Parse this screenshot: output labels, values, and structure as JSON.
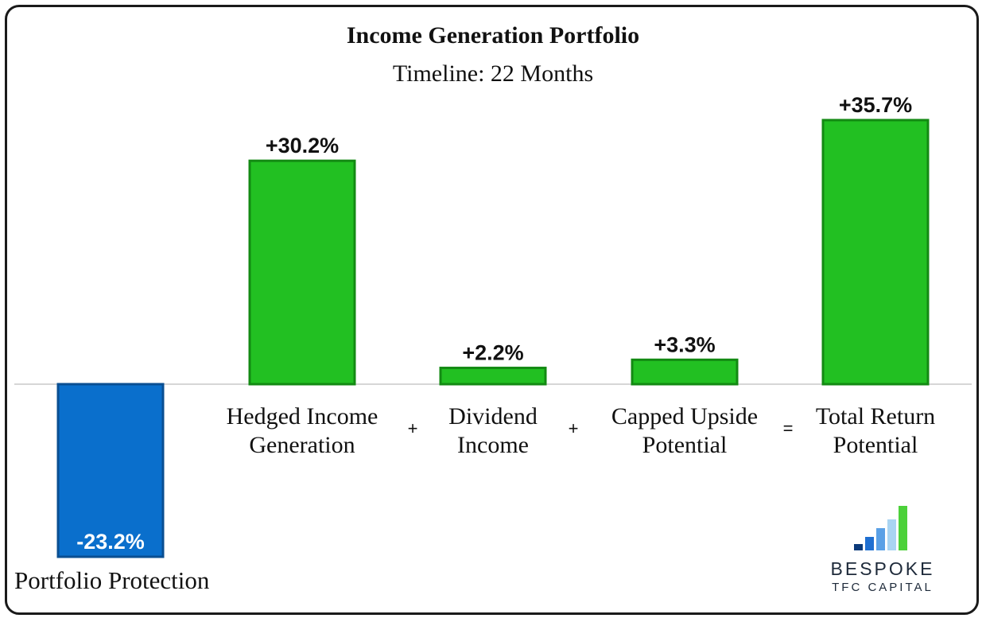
{
  "chart_data": {
    "type": "bar",
    "title": "Income Generation Portfolio",
    "subtitle": "Timeline: 22 Months",
    "categories": [
      "Portfolio Protection",
      "Hedged Income Generation",
      "Dividend Income",
      "Capped Upside Potential",
      "Total Return Potential"
    ],
    "category_lines": [
      [
        "Portfolio Protection"
      ],
      [
        "Hedged Income",
        "Generation"
      ],
      [
        "Dividend",
        "Income"
      ],
      [
        "Capped Upside",
        "Potential"
      ],
      [
        "Total Return",
        "Potential"
      ]
    ],
    "values": [
      -23.2,
      30.2,
      2.2,
      3.3,
      35.7
    ],
    "data_labels": [
      "-23.2%",
      "+30.2%",
      "+2.2%",
      "+3.3%",
      "+35.7%"
    ],
    "operators": [
      "+",
      "+",
      "="
    ],
    "colors": {
      "negative": "#0a6fcc",
      "positive": "#22c022",
      "negative_border": "#0a4f92",
      "positive_border": "#138a13"
    },
    "ylim": [
      -23.2,
      35.7
    ],
    "grid": false,
    "legend": "none"
  },
  "logo": {
    "name": "BESPOKE",
    "sub": "TFC CAPITAL",
    "bar_colors": [
      "#0b3a7a",
      "#1f6fd1",
      "#5aa0e6",
      "#a9d4f2",
      "#4cd13a"
    ],
    "bar_levels": [
      0.15,
      0.3,
      0.5,
      0.7,
      1.0
    ]
  }
}
